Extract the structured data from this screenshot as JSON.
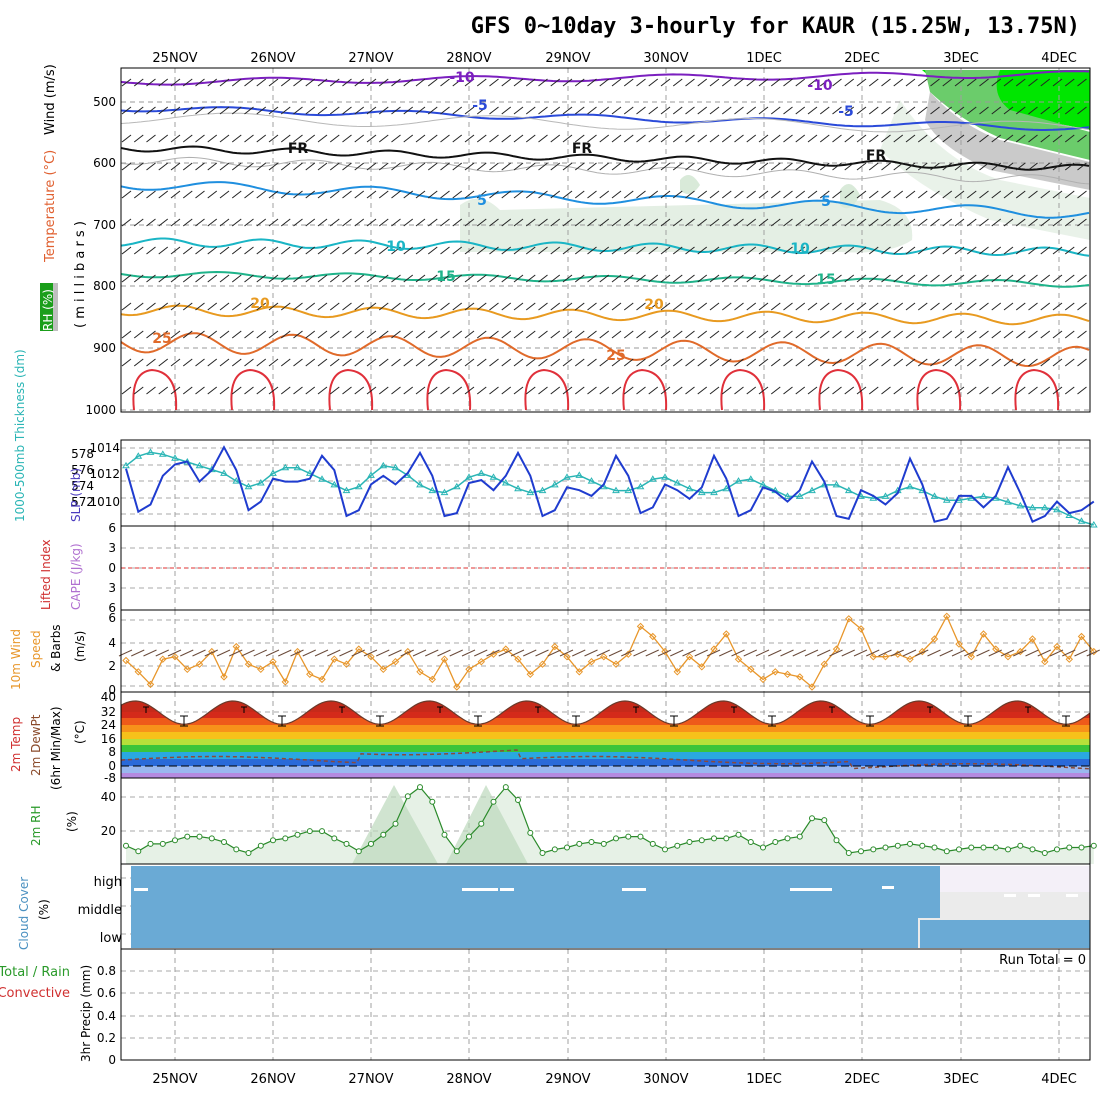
{
  "title": "GFS 0~10day 3-hourly for KAUR (15.25W, 13.75N)",
  "dates": [
    "25NOV",
    "26NOV",
    "27NOV",
    "28NOV",
    "29NOV",
    "30NOV",
    "1DEC",
    "2DEC",
    "3DEC",
    "4DEC"
  ],
  "panels": {
    "upper": {
      "label_rh": "RH (%)",
      "label_temp": "Temperature (°C)",
      "label_wind": "Wind (m/s)",
      "label_axis": "( m i l l i b a r s )",
      "ticks": [
        "500",
        "600",
        "700",
        "800",
        "900",
        "1000"
      ]
    },
    "slp": {
      "label_thk": "1000-500mb Thickness (dm)",
      "label_slp": "SLP (mb)",
      "thk_ticks": [
        "578",
        "576",
        "574",
        "572"
      ],
      "slp_ticks": [
        "1014",
        "1012",
        "1010"
      ]
    },
    "cape": {
      "label_li": "Lifted Index",
      "label_cape": "CAPE (J/kg)",
      "ticks": [
        "6",
        "3",
        "0",
        "3",
        "6"
      ]
    },
    "wind10": {
      "label_a": "10m Wind",
      "label_b": "Speed",
      "label_c": "& Barbs",
      "label_unit": "(m/s)",
      "ticks": [
        "6",
        "4",
        "2",
        "0"
      ]
    },
    "temp2m": {
      "label_a": "2m Temp",
      "label_b": "2m DewPt",
      "label_c": "(6hr Min/Max)",
      "label_unit": "(°C)",
      "ticks": [
        "40",
        "32",
        "24",
        "16",
        "8",
        "0",
        "-8"
      ]
    },
    "rh2m": {
      "label_a": "2m RH",
      "label_unit": "(%)",
      "ticks": [
        "40",
        "20"
      ]
    },
    "cloud": {
      "label_a": "Cloud Cover",
      "label_unit": "(%)",
      "levels": [
        "high",
        "middle",
        "low"
      ]
    },
    "precip": {
      "label_a": "Total / Rain",
      "label_b": "Convective",
      "label_c": "3hr Precip (mm)",
      "run_total": "Run Total = 0",
      "ticks": [
        "0.8",
        "0.6",
        "0.4",
        "0.2",
        "0"
      ]
    }
  },
  "contours": {
    "temp_labels": [
      "-10",
      "-10",
      "-5",
      "-5",
      "FR",
      "FR",
      "FR",
      "5",
      "5",
      "10",
      "10",
      "15",
      "15",
      "20",
      "20",
      "25",
      "25"
    ]
  },
  "chart_data": {
    "type": "line",
    "x": [
      "24NOV 12Z",
      "24NOV 15Z",
      "24NOV 18Z",
      "24NOV 21Z",
      "25NOV 00Z",
      "25NOV 03Z",
      "25NOV 06Z",
      "25NOV 09Z",
      "25NOV 12Z",
      "25NOV 15Z",
      "25NOV 18Z",
      "25NOV 21Z",
      "26NOV 00Z",
      "26NOV 03Z",
      "26NOV 06Z",
      "26NOV 09Z",
      "26NOV 12Z",
      "26NOV 15Z",
      "26NOV 18Z",
      "26NOV 21Z",
      "27NOV 00Z",
      "27NOV 03Z",
      "27NOV 06Z",
      "27NOV 09Z",
      "27NOV 12Z",
      "27NOV 15Z",
      "27NOV 18Z",
      "27NOV 21Z",
      "28NOV 00Z",
      "28NOV 03Z",
      "28NOV 06Z",
      "28NOV 09Z",
      "28NOV 12Z",
      "28NOV 15Z",
      "28NOV 18Z",
      "28NOV 21Z",
      "29NOV 00Z",
      "29NOV 03Z",
      "29NOV 06Z",
      "29NOV 09Z",
      "29NOV 12Z",
      "29NOV 15Z",
      "29NOV 18Z",
      "29NOV 21Z",
      "30NOV 00Z",
      "30NOV 03Z",
      "30NOV 06Z",
      "30NOV 09Z",
      "30NOV 12Z",
      "30NOV 15Z",
      "30NOV 18Z",
      "30NOV 21Z",
      "1DEC 00Z",
      "1DEC 03Z",
      "1DEC 06Z",
      "1DEC 09Z",
      "1DEC 12Z",
      "1DEC 15Z",
      "1DEC 18Z",
      "1DEC 21Z",
      "2DEC 00Z",
      "2DEC 03Z",
      "2DEC 06Z",
      "2DEC 09Z",
      "2DEC 12Z",
      "2DEC 15Z",
      "2DEC 18Z",
      "2DEC 21Z",
      "3DEC 00Z",
      "3DEC 03Z",
      "3DEC 06Z",
      "3DEC 09Z",
      "3DEC 12Z",
      "3DEC 15Z",
      "3DEC 18Z",
      "3DEC 21Z",
      "4DEC 00Z",
      "4DEC 03Z",
      "4DEC 06Z",
      "4DEC 09Z"
    ],
    "series": [
      {
        "name": "SLP (mb)",
        "color": "#1f3ccf",
        "axis": "slp",
        "ylim": [
          1008.5,
          1014.5
        ],
        "values": [
          1012.5,
          1009.5,
          1010.0,
          1012.0,
          1012.8,
          1013.0,
          1011.6,
          1012.4,
          1014.0,
          1012.4,
          1009.6,
          1010.2,
          1011.8,
          1011.6,
          1011.6,
          1011.8,
          1013.4,
          1012.4,
          1009.2,
          1009.6,
          1011.4,
          1012.0,
          1011.4,
          1012.2,
          1013.6,
          1012.0,
          1009.2,
          1009.4,
          1011.5,
          1011.7,
          1011.0,
          1012.0,
          1013.6,
          1012.0,
          1009.2,
          1009.6,
          1011.2,
          1011.0,
          1010.6,
          1011.4,
          1013.4,
          1012.0,
          1009.4,
          1009.8,
          1011.4,
          1011.0,
          1010.4,
          1011.2,
          1013.4,
          1011.8,
          1009.2,
          1009.6,
          1011.2,
          1010.9,
          1010.2,
          1011.0,
          1013.0,
          1011.6,
          1009.2,
          1009.0,
          1011.0,
          1010.6,
          1010.0,
          1010.8,
          1013.2,
          1011.4,
          1008.8,
          1009.0,
          1010.6,
          1010.6,
          1009.8,
          1010.6,
          1012.6,
          1010.8,
          1008.8,
          1009.2,
          1010.2,
          1009.4,
          1009.6,
          1010.2
        ]
      },
      {
        "name": "1000-500mb Thickness (dm)",
        "color": "#2ab5b5",
        "axis": "thk",
        "ylim": [
          570.5,
          579.5
        ],
        "values": [
          576.8,
          577.8,
          578.2,
          578.0,
          577.6,
          577.2,
          576.8,
          576.4,
          576.0,
          575.2,
          574.6,
          575.0,
          576.0,
          576.6,
          576.6,
          576.0,
          575.4,
          574.8,
          574.2,
          574.6,
          575.8,
          576.8,
          576.6,
          575.8,
          574.8,
          574.2,
          574.0,
          574.6,
          575.6,
          576.0,
          575.6,
          575.0,
          574.4,
          574.0,
          574.2,
          574.8,
          575.6,
          575.8,
          575.2,
          574.6,
          574.2,
          574.2,
          574.6,
          575.4,
          575.6,
          575.0,
          574.4,
          574.0,
          574.0,
          574.4,
          575.2,
          575.4,
          574.8,
          574.2,
          573.6,
          573.6,
          574.2,
          574.8,
          574.8,
          574.2,
          573.6,
          573.4,
          573.6,
          574.2,
          574.6,
          574.2,
          573.6,
          573.2,
          573.2,
          573.4,
          573.6,
          573.4,
          573.0,
          572.6,
          572.4,
          572.4,
          572.2,
          571.6,
          571.0,
          570.6
        ]
      },
      {
        "name": "10m Wind Speed (m/s)",
        "color": "#e8962a",
        "axis": "wind",
        "ylim": [
          0,
          6.5
        ],
        "values": [
          2.5,
          1.6,
          0.6,
          2.6,
          2.8,
          1.8,
          2.2,
          3.2,
          1.2,
          3.6,
          2.2,
          1.8,
          2.4,
          0.8,
          3.2,
          1.4,
          1.0,
          2.6,
          2.2,
          3.4,
          2.8,
          1.8,
          2.4,
          3.2,
          1.6,
          1.0,
          2.6,
          0.4,
          1.8,
          2.4,
          3.0,
          3.4,
          2.6,
          1.4,
          2.2,
          3.6,
          2.8,
          1.6,
          2.4,
          2.8,
          2.2,
          3.0,
          5.2,
          4.4,
          3.2,
          1.6,
          2.8,
          2.0,
          3.4,
          4.6,
          2.6,
          1.8,
          1.0,
          1.6,
          1.4,
          1.2,
          0.4,
          2.2,
          3.4,
          5.8,
          5.0,
          2.8,
          2.8,
          3.0,
          2.6,
          3.2,
          4.2,
          6.0,
          3.8,
          2.8,
          4.6,
          3.4,
          2.8,
          3.2,
          4.2,
          2.4,
          3.6,
          2.6,
          4.4,
          3.2
        ]
      },
      {
        "name": "2m RH (%)",
        "color": "#2a8a2a",
        "axis": "rh",
        "ylim": [
          5,
          52
        ],
        "values": [
          15,
          12,
          16,
          16,
          18,
          20,
          20,
          19,
          17,
          13,
          11,
          15,
          18,
          19,
          21,
          23,
          23,
          19,
          16,
          12,
          16,
          21,
          27,
          42,
          47,
          39,
          21,
          12,
          20,
          27,
          39,
          47,
          40,
          22,
          11,
          13,
          14,
          16,
          17,
          16,
          19,
          20,
          20,
          16,
          13,
          15,
          17,
          18,
          19,
          19,
          21,
          17,
          14,
          17,
          19,
          20,
          30,
          29,
          18,
          11,
          12,
          13,
          14,
          15,
          16,
          15,
          14,
          12,
          13,
          14,
          14,
          14,
          13,
          15,
          13,
          11,
          13,
          14,
          14,
          15
        ]
      }
    ],
    "temperature_2m_c": {
      "daily_max": [
        35,
        35,
        35,
        35,
        35,
        35,
        35,
        35,
        35
      ],
      "daily_min": [
        22,
        22,
        22,
        22,
        22,
        22,
        22,
        22,
        22
      ]
    },
    "dewpoint_2m_c": {
      "min": -6,
      "max": 10
    },
    "precip_mm": {
      "ylim": [
        0,
        1.0
      ],
      "run_total": 0
    },
    "cape": {
      "ylim": [
        -6,
        6
      ],
      "values": "none"
    }
  }
}
